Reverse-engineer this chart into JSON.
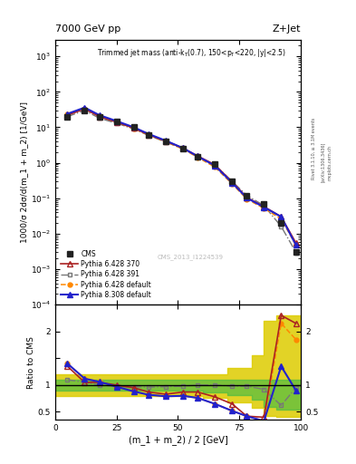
{
  "title_left": "7000 GeV pp",
  "title_right": "Z+Jet",
  "annotation_main": "Trimmed jet mass",
  "annotation_sub": "(anti-k_{T}(0.7), 150<p_{T}<220, |y|<2.5)",
  "cms_watermark": "CMS_2013_I1224539",
  "rivet_label": "Rivet 3.1.10, ≥ 3.1M events",
  "arxiv_label": "[arXiv:1306.3436]",
  "mcplots_label": "mcplots.cern.ch",
  "ylabel_main": "1000/σ 2dσ/d(m_1 + m_2) [1/GeV]",
  "ylabel_ratio": "Ratio to CMS",
  "xlabel": "(m_1 + m_2) / 2 [GeV]",
  "xlim": [
    0,
    100
  ],
  "ylim_main": [
    0.0001,
    3000
  ],
  "ylim_ratio": [
    0.35,
    2.5
  ],
  "x_cms": [
    5,
    12,
    18,
    25,
    32,
    38,
    45,
    52,
    58,
    65,
    72,
    78,
    85,
    92,
    98
  ],
  "y_cms": [
    20,
    30,
    20,
    15,
    10,
    6,
    4,
    2.5,
    1.5,
    0.9,
    0.3,
    0.12,
    0.07,
    0.02,
    0.003
  ],
  "y_cms_err": [
    2,
    3,
    2,
    1.5,
    1,
    0.7,
    0.4,
    0.25,
    0.15,
    0.1,
    0.04,
    0.015,
    0.008,
    0.003,
    0.0005
  ],
  "x_pythia": [
    5,
    12,
    18,
    25,
    32,
    38,
    45,
    52,
    58,
    65,
    72,
    78,
    85,
    92,
    98
  ],
  "y_p6_370": [
    22,
    33,
    20,
    14,
    9.5,
    6.2,
    4.1,
    2.6,
    1.55,
    0.88,
    0.29,
    0.105,
    0.058,
    0.03,
    0.0055
  ],
  "y_p6_391": [
    20,
    30,
    18,
    13,
    9.0,
    5.9,
    3.85,
    2.45,
    1.48,
    0.87,
    0.3,
    0.12,
    0.062,
    0.016,
    0.003
  ],
  "y_p6_default": [
    23,
    34,
    21,
    14,
    9.3,
    6.1,
    3.95,
    2.45,
    1.42,
    0.76,
    0.255,
    0.095,
    0.052,
    0.026,
    0.0048
  ],
  "y_p8_default": [
    24,
    36,
    22,
    15,
    10,
    6.5,
    4.2,
    2.6,
    1.52,
    0.83,
    0.275,
    0.102,
    0.056,
    0.03,
    0.0048
  ],
  "ratio_p6_370": [
    1.35,
    1.05,
    1.05,
    1.0,
    0.95,
    0.87,
    0.83,
    0.87,
    0.87,
    0.78,
    0.65,
    0.42,
    0.4,
    2.3,
    2.15
  ],
  "ratio_p6_391": [
    1.1,
    1.05,
    1.0,
    0.97,
    0.97,
    0.96,
    0.97,
    0.98,
    1.0,
    1.0,
    0.98,
    0.98,
    0.92,
    0.62,
    0.95
  ],
  "ratio_p6_default": [
    1.4,
    1.12,
    1.06,
    0.97,
    0.88,
    0.82,
    0.79,
    0.8,
    0.76,
    0.65,
    0.52,
    0.42,
    0.33,
    2.15,
    1.85
  ],
  "ratio_p8_default": [
    1.4,
    1.12,
    1.06,
    0.97,
    0.88,
    0.82,
    0.79,
    0.8,
    0.76,
    0.65,
    0.52,
    0.42,
    0.33,
    1.35,
    0.9
  ],
  "band_x": [
    0,
    10,
    20,
    30,
    40,
    50,
    60,
    70,
    80,
    85,
    90,
    100
  ],
  "band_green_lo": [
    0.9,
    0.9,
    0.9,
    0.9,
    0.9,
    0.9,
    0.87,
    0.82,
    0.72,
    0.6,
    0.55,
    0.55
  ],
  "band_green_hi": [
    1.1,
    1.1,
    1.1,
    1.1,
    1.1,
    1.1,
    1.1,
    1.1,
    1.1,
    1.1,
    1.1,
    1.1
  ],
  "band_yellow_lo": [
    0.8,
    0.8,
    0.8,
    0.8,
    0.8,
    0.8,
    0.77,
    0.67,
    0.57,
    0.42,
    0.4,
    0.4
  ],
  "band_yellow_hi": [
    1.2,
    1.2,
    1.2,
    1.2,
    1.2,
    1.2,
    1.2,
    1.32,
    1.55,
    2.2,
    2.3,
    2.3
  ],
  "color_cms": "#222222",
  "color_p6_370": "#aa2222",
  "color_p6_391": "#777777",
  "color_p6_default": "#ff8800",
  "color_p8_default": "#2222cc",
  "color_green_band": "#44bb44",
  "color_yellow_band": "#ddcc00",
  "legend_entries": [
    "CMS",
    "Pythia 6.428 370",
    "Pythia 6.428 391",
    "Pythia 6.428 default",
    "Pythia 8.308 default"
  ]
}
